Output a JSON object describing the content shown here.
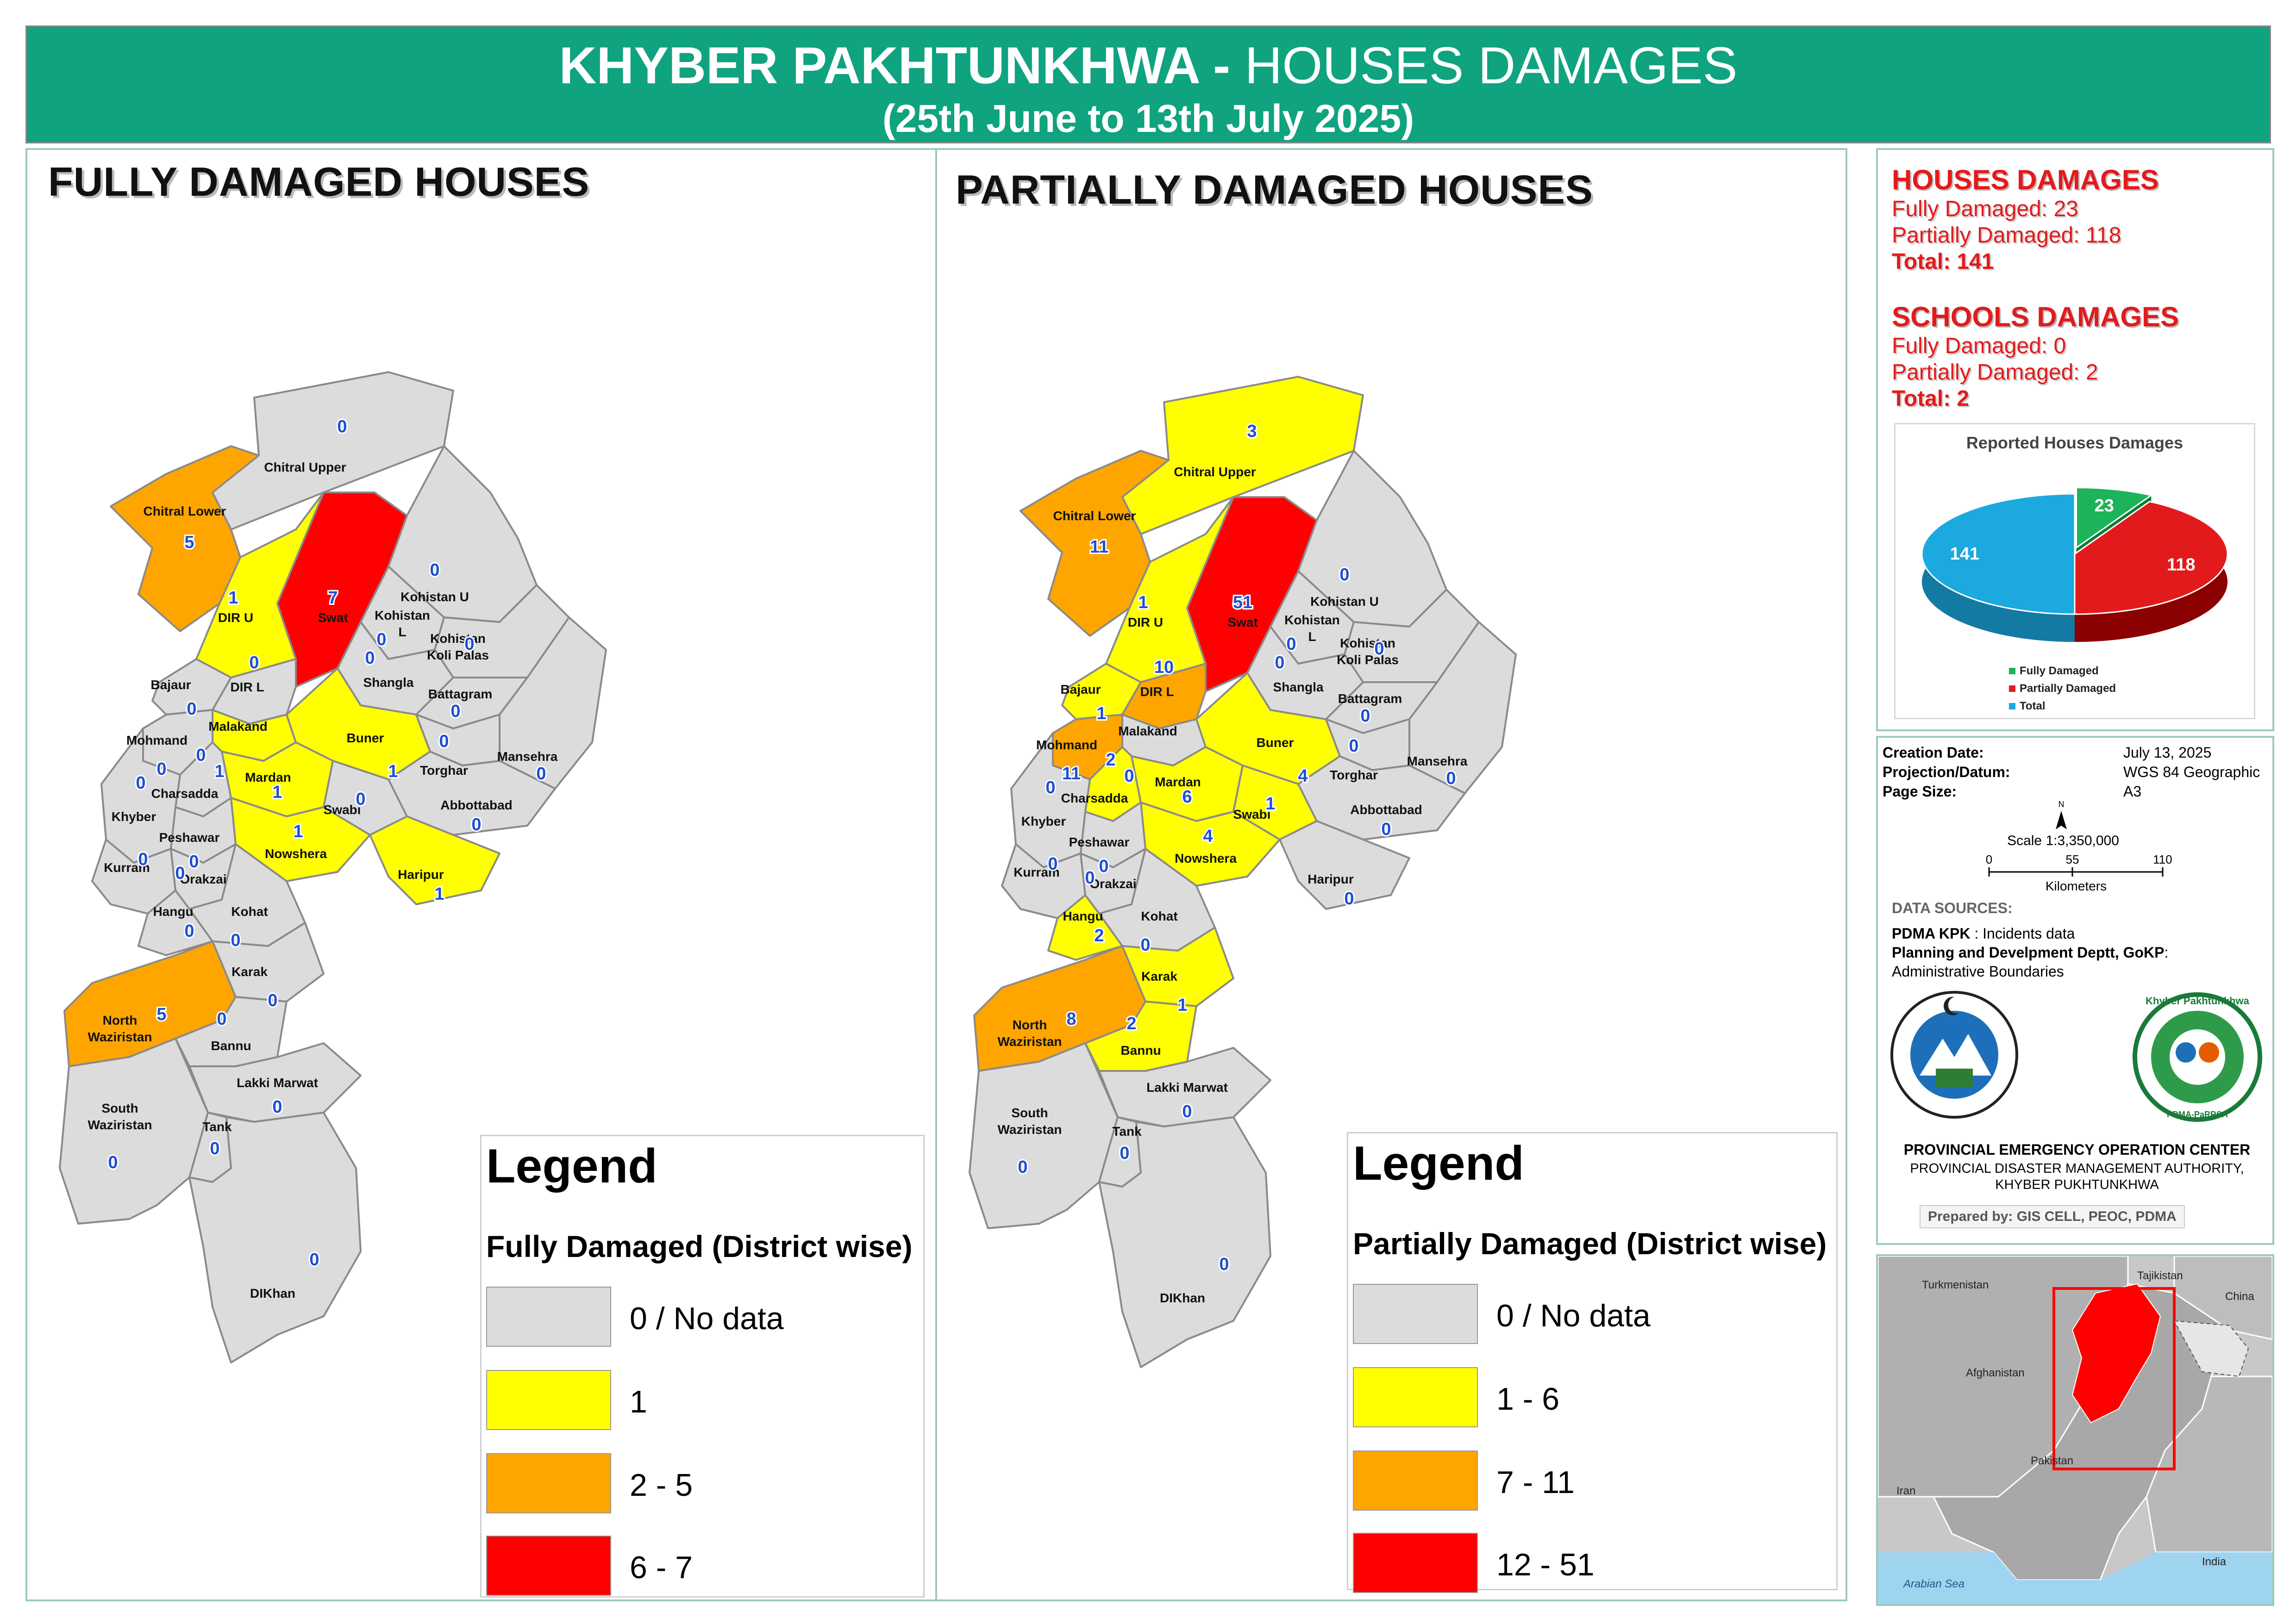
{
  "header": {
    "title_bold": "KHYBER PAKHTUNKHWA -",
    "title_light": "HOUSES DAMAGES",
    "subtitle": "(25th June to 13th July 2025)"
  },
  "colors": {
    "header_bg": "#0fa37f",
    "grey": "#dcdcdc",
    "yellow": "#ffff00",
    "orange": "#ffa500",
    "red": "#ff0000",
    "value_text": "#1f4fd1"
  },
  "fully_map": {
    "title": "FULLY DAMAGED HOUSES",
    "legend_title": "Legend",
    "legend_subtitle": "Fully Damaged (District wise)",
    "legend_items": [
      {
        "label": "0 / No data",
        "color": "#dcdcdc"
      },
      {
        "label": "1",
        "color": "#ffff00"
      },
      {
        "label": "2 - 5",
        "color": "#ffa500"
      },
      {
        "label": "6 - 7",
        "color": "#ff0000"
      }
    ],
    "districts": [
      {
        "name": "Chitral Upper",
        "value": "0"
      },
      {
        "name": "Chitral Lower",
        "value": "5"
      },
      {
        "name": "DIR U",
        "value": "1"
      },
      {
        "name": "Swat",
        "value": "7"
      },
      {
        "name": "Kohistan U",
        "value": "0"
      },
      {
        "name": "Kohistan L",
        "value": "0"
      },
      {
        "name": "Kohistan Koli Palas",
        "value": "0"
      },
      {
        "name": "Shangla",
        "value": "0"
      },
      {
        "name": "Battagram",
        "value": "0"
      },
      {
        "name": "Bajaur",
        "value": "0"
      },
      {
        "name": "DIR L",
        "value": "0"
      },
      {
        "name": "Malakand",
        "value": "1"
      },
      {
        "name": "Buner",
        "value": "1"
      },
      {
        "name": "Torghar",
        "value": "0"
      },
      {
        "name": "Mansehra",
        "value": "0"
      },
      {
        "name": "Mohmand",
        "value": "0"
      },
      {
        "name": "Mardan",
        "value": "1"
      },
      {
        "name": "Charsadda",
        "value": "0"
      },
      {
        "name": "Swabi",
        "value": "0"
      },
      {
        "name": "Abbottabad",
        "value": "0"
      },
      {
        "name": "Haripur",
        "value": "1"
      },
      {
        "name": "Khyber",
        "value": "0"
      },
      {
        "name": "Peshawar",
        "value": "0"
      },
      {
        "name": "Nowshera",
        "value": "1"
      },
      {
        "name": "Kurram",
        "value": "0"
      },
      {
        "name": "Orakzai",
        "value": "0"
      },
      {
        "name": "Hangu",
        "value": "0"
      },
      {
        "name": "Kohat",
        "value": "0"
      },
      {
        "name": "Karak",
        "value": "0"
      },
      {
        "name": "North Waziristan",
        "value": "5"
      },
      {
        "name": "Bannu",
        "value": "0"
      },
      {
        "name": "Lakki Marwat",
        "value": "0"
      },
      {
        "name": "South Waziristan",
        "value": "0"
      },
      {
        "name": "Tank",
        "value": "0"
      },
      {
        "name": "DIKhan",
        "value": "0"
      }
    ]
  },
  "partial_map": {
    "title": "PARTIALLY DAMAGED HOUSES",
    "legend_title": "Legend",
    "legend_subtitle": "Partially Damaged (District wise)",
    "legend_items": [
      {
        "label": "0 / No data",
        "color": "#dcdcdc"
      },
      {
        "label": "1 - 6",
        "color": "#ffff00"
      },
      {
        "label": "7 - 11",
        "color": "#ffa500"
      },
      {
        "label": "12 - 51",
        "color": "#ff0000"
      }
    ],
    "districts": [
      {
        "name": "Chitral Upper",
        "value": "3"
      },
      {
        "name": "Chitral Lower",
        "value": "11"
      },
      {
        "name": "DIR U",
        "value": "1"
      },
      {
        "name": "Swat",
        "value": "51"
      },
      {
        "name": "Bajaur",
        "value": "1"
      },
      {
        "name": "DIR L",
        "value": "10"
      },
      {
        "name": "Mohmand",
        "value": "11"
      },
      {
        "name": "Malakand",
        "value": "0"
      },
      {
        "name": "Buner",
        "value": "4"
      },
      {
        "name": "Mardan",
        "value": "6"
      },
      {
        "name": "Charsadda",
        "value": "2"
      },
      {
        "name": "Swabi",
        "value": "1"
      },
      {
        "name": "Nowshera",
        "value": "4"
      },
      {
        "name": "Hangu",
        "value": "2"
      },
      {
        "name": "Karak",
        "value": "1"
      },
      {
        "name": "Bannu",
        "value": "2"
      },
      {
        "name": "North Waziristan",
        "value": "8"
      },
      {
        "name": "Kohistan U",
        "value": "0"
      },
      {
        "name": "Kohistan L",
        "value": "0"
      },
      {
        "name": "Kohistan Koli Palas",
        "value": "0"
      },
      {
        "name": "Shangla",
        "value": "0"
      },
      {
        "name": "Battagram",
        "value": "0"
      },
      {
        "name": "Torghar",
        "value": "0"
      },
      {
        "name": "Mansehra",
        "value": "0"
      },
      {
        "name": "Abbottabad",
        "value": "0"
      },
      {
        "name": "Haripur",
        "value": "0"
      },
      {
        "name": "Khyber",
        "value": "0"
      },
      {
        "name": "Peshawar",
        "value": "0"
      },
      {
        "name": "Kurram",
        "value": "0"
      },
      {
        "name": "Orakzai",
        "value": "0"
      },
      {
        "name": "Kohat",
        "value": "0"
      },
      {
        "name": "Lakki Marwat",
        "value": "0"
      },
      {
        "name": "South Waziristan",
        "value": "0"
      },
      {
        "name": "Tank",
        "value": "0"
      },
      {
        "name": "DIKhan",
        "value": "0"
      }
    ]
  },
  "summary": {
    "houses_heading": "HOUSES DAMAGES",
    "houses_fully": "Fully Damaged: 23",
    "houses_partially": "Partially Damaged: 118",
    "houses_total": "Total: 141",
    "schools_heading": "SCHOOLS DAMAGES",
    "schools_fully": "Fully Damaged: 0",
    "schools_partially": "Partially Damaged: 2",
    "schools_total": "Total: 2"
  },
  "chart_data": {
    "type": "pie",
    "title": "Reported Houses Damages",
    "categories": [
      "Fully Damaged",
      "Partially Damaged",
      "Total"
    ],
    "values": [
      23,
      118,
      141
    ],
    "colors": [
      "#1db35a",
      "#e31a1c",
      "#1ba9e0"
    ],
    "legend": "bottom-left"
  },
  "metadata": {
    "creation_label": "Creation Date:",
    "creation_value": "July 13, 2025",
    "projection_label": "Projection/Datum:",
    "projection_value": "WGS 84 Geographic",
    "page_label": "Page Size:",
    "page_value": "A3",
    "scale_text": "Scale 1:3,350,000",
    "scale_ticks": [
      "0",
      "55",
      "110"
    ],
    "scale_unit": "Kilometers",
    "north": "N",
    "data_sources_heading": "DATA SOURCES:",
    "source1_bold": "PDMA KPK",
    "source1_rest": " : Incidents data",
    "source2_bold": "Planning and Develpment Deptt, GoKP",
    "source2_rest": ":",
    "source2_line2": "Administrative Boundaries",
    "org1": "PROVINCIAL EMERGENCY OPERATION CENTER",
    "org2": "PROVINCIAL DISASTER MANAGEMENT AUTHORITY,",
    "org3": "KHYBER PUKHTUNKHWA",
    "prepared_by": "Prepared by: GIS CELL, PEOC, PDMA",
    "logo_right_text": "Khyber Pakhtunkhwa",
    "logo_right_bottom": "PDMA-PaRRSA"
  },
  "inset_map": {
    "labels": [
      "Tajikistan",
      "Turkmenistan",
      "China",
      "Afghanistan",
      "Pakistan",
      "Iran",
      "India",
      "Arabian Sea"
    ]
  }
}
